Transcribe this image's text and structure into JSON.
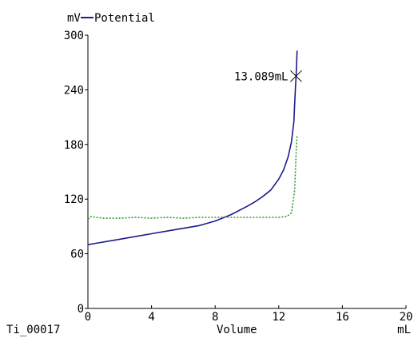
{
  "chart_data": {
    "type": "line",
    "y_unit": "mV",
    "x_unit": "mL",
    "xlabel": "Volume",
    "sample_id": "Ti_00017",
    "xlim": [
      0,
      20
    ],
    "ylim": [
      0,
      300
    ],
    "x_ticks": [
      0,
      4,
      8,
      12,
      16,
      20
    ],
    "y_ticks": [
      0,
      60,
      120,
      180,
      240,
      300
    ],
    "legend_position": "top-left",
    "series": [
      {
        "name": "Potential",
        "color": "#1c1c8c",
        "style": "solid",
        "x": [
          0,
          1,
          2,
          3,
          4,
          5,
          6,
          7,
          8,
          9,
          10,
          10.5,
          11,
          11.5,
          12,
          12.3,
          12.6,
          12.8,
          12.95,
          13.0,
          13.05,
          13.089,
          13.12,
          13.15
        ],
        "y": [
          70,
          73,
          76,
          79,
          82,
          85,
          88,
          91,
          96,
          103,
          112,
          117,
          123,
          130,
          142,
          152,
          167,
          183,
          205,
          225,
          243,
          255,
          268,
          283
        ]
      },
      {
        "name": "",
        "color": "#2e9a2e",
        "style": "dotted",
        "x": [
          0,
          0.2,
          0.5,
          1,
          2,
          3,
          4,
          5,
          6,
          7,
          8,
          9,
          10,
          11,
          12,
          12.5,
          12.8,
          13.0,
          13.1,
          13.15
        ],
        "y": [
          98,
          101,
          100,
          99,
          99,
          100,
          99,
          100,
          99,
          100,
          100,
          100,
          100,
          100,
          100,
          101,
          105,
          130,
          175,
          190
        ]
      }
    ],
    "annotation": {
      "label": "13.089mL",
      "x": 13.089,
      "y": 255,
      "marker": "x"
    }
  }
}
